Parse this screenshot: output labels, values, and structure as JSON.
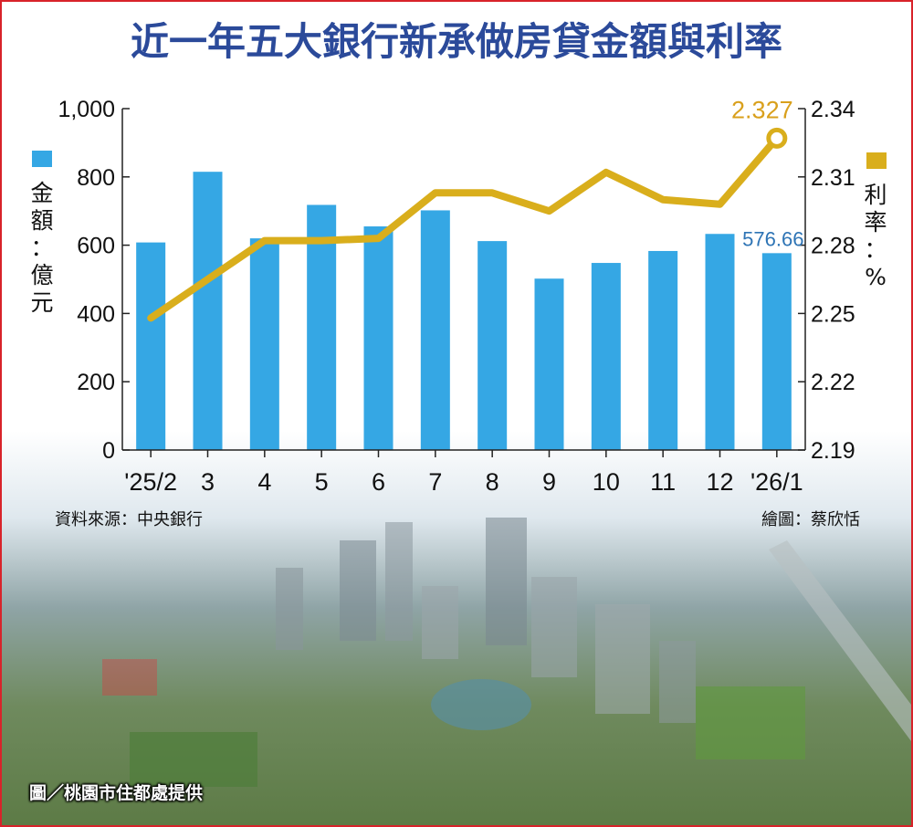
{
  "title": "近一年五大銀行新承做房貸金額與利率",
  "source_note": "資料來源：中央銀行",
  "artist_note": "繪圖：蔡欣恬",
  "photo_credit": "圖／桃園市住都處提供",
  "colors": {
    "title": "#2b4a9a",
    "bar": "#35a7e4",
    "line": "#d9ae1c",
    "last_bar_label": "#2e74b5",
    "last_rate_label": "#d9a01c",
    "frame": "#d8232a"
  },
  "chart_data": {
    "type": "bar+line",
    "categories": [
      "'25/2",
      "3",
      "4",
      "5",
      "6",
      "7",
      "8",
      "9",
      "10",
      "11",
      "12",
      "'26/1"
    ],
    "series": [
      {
        "name": "金額：億元",
        "type": "bar",
        "axis": "left",
        "values": [
          608,
          815,
          620,
          718,
          655,
          702,
          612,
          502,
          548,
          583,
          633,
          576.66
        ]
      },
      {
        "name": "利率：%",
        "type": "line",
        "axis": "right",
        "values": [
          2.248,
          2.265,
          2.282,
          2.282,
          2.283,
          2.303,
          2.303,
          2.295,
          2.312,
          2.3,
          2.298,
          2.327
        ]
      }
    ],
    "left_axis": {
      "label_parts": [
        "金額",
        "：",
        "億元"
      ],
      "ylim": [
        0,
        1000
      ],
      "ticks": [
        "0",
        "200",
        "400",
        "600",
        "800",
        "1,000"
      ]
    },
    "right_axis": {
      "label_parts": [
        "利率",
        "：",
        "%"
      ],
      "ylim": [
        2.19,
        2.34
      ],
      "ticks": [
        "2.19",
        "2.22",
        "2.25",
        "2.28",
        "2.31",
        "2.34"
      ]
    },
    "annotations": {
      "last_bar_value": "576.66",
      "last_rate_value": "2.327"
    },
    "grid": false,
    "legend": "axis-side"
  }
}
